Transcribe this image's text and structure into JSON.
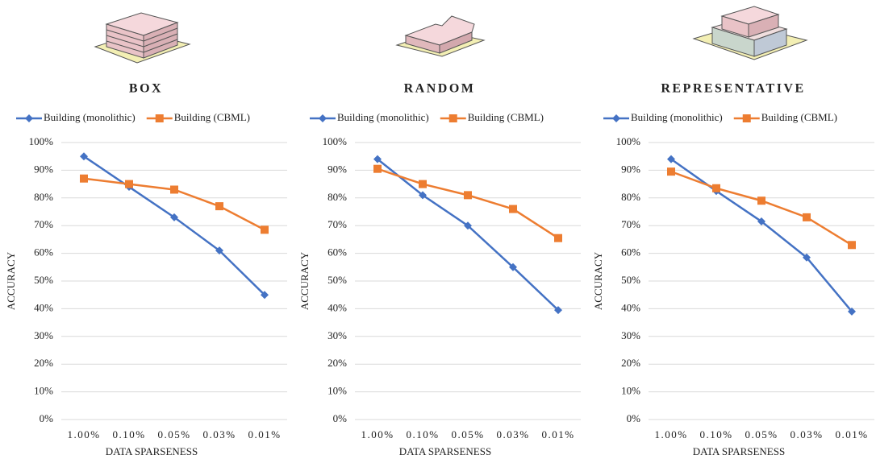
{
  "chart_data": [
    {
      "type": "line",
      "title": "BOX",
      "x_label": "DATA SPARSENESS",
      "y_label": "ACCURACY",
      "categories": [
        "1.00%",
        "0.10%",
        "0.05%",
        "0.03%",
        "0.01%"
      ],
      "series": [
        {
          "name": "Building (monolithic)",
          "color": "#4472c4",
          "marker": "diamond",
          "values": [
            95,
            84,
            73,
            61,
            45
          ]
        },
        {
          "name": "Building (CBML)",
          "color": "#ed7d31",
          "marker": "square",
          "values": [
            87,
            85,
            83,
            77,
            68.5
          ]
        }
      ],
      "ylim": [
        0,
        100
      ],
      "yticks": [
        {
          "value": 0,
          "label": "0%"
        },
        {
          "value": 10,
          "label": "10%"
        },
        {
          "value": 20,
          "label": "20%"
        },
        {
          "value": 30,
          "label": "30%"
        },
        {
          "value": 40,
          "label": "40%"
        },
        {
          "value": 50,
          "label": "50%"
        },
        {
          "value": 60,
          "label": "60%"
        },
        {
          "value": 70,
          "label": "70%"
        },
        {
          "value": 80,
          "label": "80%"
        },
        {
          "value": 90,
          "label": "90%"
        },
        {
          "value": 100,
          "label": "100%"
        }
      ],
      "grid": true,
      "legend": "top"
    },
    {
      "type": "line",
      "title": "RANDOM",
      "x_label": "DATA SPARSENESS",
      "y_label": "ACCURACY",
      "categories": [
        "1.00%",
        "0.10%",
        "0.05%",
        "0.03%",
        "0.01%"
      ],
      "series": [
        {
          "name": "Building (monolithic)",
          "color": "#4472c4",
          "marker": "diamond",
          "values": [
            94,
            81,
            70,
            55,
            39.5
          ]
        },
        {
          "name": "Building (CBML)",
          "color": "#ed7d31",
          "marker": "square",
          "values": [
            90.5,
            85,
            81,
            76,
            65.5
          ]
        }
      ],
      "ylim": [
        0,
        100
      ],
      "yticks": [
        {
          "value": 0,
          "label": "0%"
        },
        {
          "value": 10,
          "label": "10%"
        },
        {
          "value": 20,
          "label": "20%"
        },
        {
          "value": 30,
          "label": "30%"
        },
        {
          "value": 40,
          "label": "40%"
        },
        {
          "value": 50,
          "label": "50%"
        },
        {
          "value": 60,
          "label": "60%"
        },
        {
          "value": 70,
          "label": "70%"
        },
        {
          "value": 80,
          "label": "80%"
        },
        {
          "value": 90,
          "label": "90%"
        },
        {
          "value": 100,
          "label": "100%"
        }
      ],
      "grid": true,
      "legend": "top"
    },
    {
      "type": "line",
      "title": "REPRESENTATIVE",
      "x_label": "DATA SPARSENESS",
      "y_label": "ACCURACY",
      "categories": [
        "1.00%",
        "0.10%",
        "0.05%",
        "0.03%",
        "0.01%"
      ],
      "series": [
        {
          "name": "Building (monolithic)",
          "color": "#4472c4",
          "marker": "diamond",
          "values": [
            94,
            82.5,
            71.5,
            58.5,
            39
          ]
        },
        {
          "name": "Building (CBML)",
          "color": "#ed7d31",
          "marker": "square",
          "values": [
            89.5,
            83.5,
            79,
            73,
            63
          ]
        }
      ],
      "ylim": [
        0,
        100
      ],
      "yticks": [
        {
          "value": 0,
          "label": "0%"
        },
        {
          "value": 10,
          "label": "10%"
        },
        {
          "value": 20,
          "label": "20%"
        },
        {
          "value": 30,
          "label": "30%"
        },
        {
          "value": 40,
          "label": "40%"
        },
        {
          "value": 50,
          "label": "50%"
        },
        {
          "value": 60,
          "label": "60%"
        },
        {
          "value": 70,
          "label": "70%"
        },
        {
          "value": 80,
          "label": "80%"
        },
        {
          "value": 90,
          "label": "90%"
        },
        {
          "value": 100,
          "label": "100%"
        }
      ],
      "grid": true,
      "legend": "top"
    }
  ]
}
